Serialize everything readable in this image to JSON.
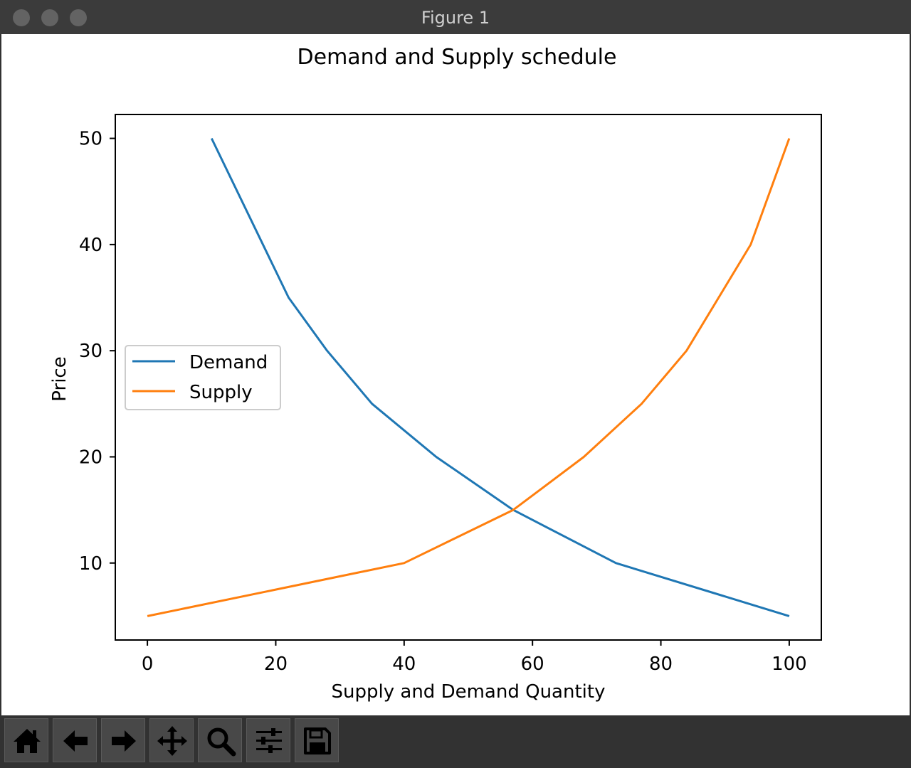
{
  "window": {
    "title": "Figure 1"
  },
  "toolbar": {
    "buttons": [
      {
        "icon": "home-icon"
      },
      {
        "icon": "back-arrow-icon"
      },
      {
        "icon": "forward-arrow-icon"
      },
      {
        "icon": "pan-move-icon"
      },
      {
        "icon": "zoom-magnifier-icon"
      },
      {
        "icon": "configure-subplots-icon"
      },
      {
        "icon": "save-floppy-icon"
      }
    ]
  },
  "chart_data": {
    "type": "line",
    "title": "Demand and Supply schedule",
    "xlabel": "Supply and Demand Quantity",
    "ylabel": "Price",
    "xlim": [
      -5,
      105
    ],
    "ylim": [
      2.75,
      52.25
    ],
    "xticks": [
      0,
      20,
      40,
      60,
      80,
      100
    ],
    "yticks": [
      10,
      20,
      30,
      40,
      50
    ],
    "grid": false,
    "legend_position": "center-left",
    "series": [
      {
        "name": "Demand",
        "color": "#1f77b4",
        "x": [
          10,
          22,
          28,
          35,
          45,
          57,
          73,
          100
        ],
        "y": [
          50,
          35,
          30,
          25,
          20,
          15,
          10,
          5
        ]
      },
      {
        "name": "Supply",
        "color": "#ff7f0e",
        "x": [
          0,
          40,
          57,
          68,
          77,
          84,
          94,
          100
        ],
        "y": [
          5,
          10,
          15,
          20,
          25,
          30,
          40,
          50
        ]
      }
    ]
  }
}
